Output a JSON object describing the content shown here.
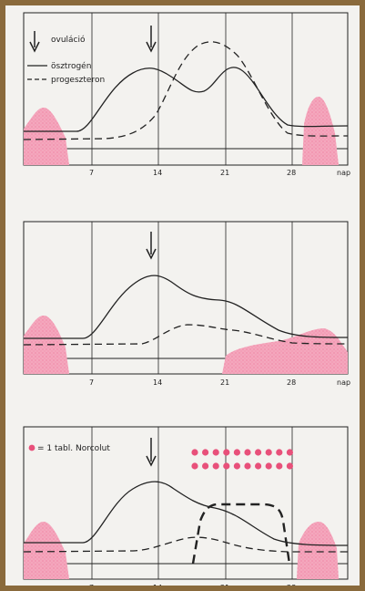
{
  "colors": {
    "frame": "#8a6a3c",
    "paper": "#f3f2ef",
    "line": "#222222",
    "pink": "#f4a7bd",
    "dot": "#e8507a"
  },
  "x_ticks": [
    "7",
    "14",
    "21",
    "28"
  ],
  "x_unit": "nap",
  "panels": [
    {
      "legend": {
        "arrow_label": "ovuláció",
        "solid_label": "ösztrogén",
        "dashed_label": "progeszteron"
      },
      "has_ovulation_arrow": true,
      "ovulation_day": 14,
      "series": {
        "estrogen": {
          "name": "ösztrogén",
          "style": "solid"
        },
        "progesterone": {
          "name": "progeszteron",
          "style": "dashed"
        }
      },
      "menstruation_days": [
        [
          1,
          4
        ],
        [
          29,
          32
        ]
      ]
    },
    {
      "has_ovulation_arrow": true,
      "ovulation_day": 14,
      "series": {
        "estrogen": {
          "style": "solid"
        },
        "progesterone": {
          "style": "dashed"
        }
      },
      "menstruation_days": [
        [
          1,
          4
        ],
        [
          22,
          32
        ]
      ]
    },
    {
      "pill_legend": "= 1 tabl. Norcolut",
      "pill_icon": "pink-dot-icon",
      "pill_count": 20,
      "has_ovulation_arrow": true,
      "ovulation_day": 14,
      "series": {
        "estrogen": {
          "style": "solid"
        },
        "progesterone": {
          "style": "dashed"
        },
        "norcolut_effect": {
          "style": "bold-dashed"
        }
      },
      "menstruation_days": [
        [
          1,
          4
        ],
        [
          29,
          32
        ]
      ]
    }
  ]
}
